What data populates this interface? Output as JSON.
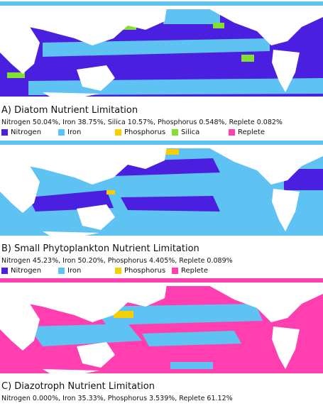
{
  "panels": [
    {
      "title": "A) Diatom Nutrient Limitation",
      "stats": "Nitrogen 50.04%, Iron 38.75%, Silica 10.57%, Phosphorus 0.548%, Replete 0.082%",
      "legend": [
        {
          "label": "Nitrogen",
          "color": "#4b1fe0"
        },
        {
          "label": "Iron",
          "color": "#5ec3f2"
        },
        {
          "label": "Phosphorus",
          "color": "#f5cf00"
        },
        {
          "label": "Silica",
          "color": "#84e030"
        },
        {
          "label": "Replete",
          "color": "#ff3fb0"
        }
      ]
    },
    {
      "title": "B) Small Phytoplankton Nutrient Limitation",
      "stats": "Nitrogen 45.23%, Iron 50.20%, Phosphorus 4.405%, Replete 0.089%",
      "legend": [
        {
          "label": "Nitrogen",
          "color": "#4b1fe0"
        },
        {
          "label": "Iron",
          "color": "#5ec3f2"
        },
        {
          "label": "Phosphorus",
          "color": "#f5cf00"
        },
        {
          "label": "Replete",
          "color": "#ff3fb0"
        }
      ]
    },
    {
      "title": "C) Diazotroph Nutrient Limitation",
      "stats": "Nitrogen 0.000%, Iron 35.33%, Phosphorus 3.539%, Replete 61.12%"
    }
  ]
}
